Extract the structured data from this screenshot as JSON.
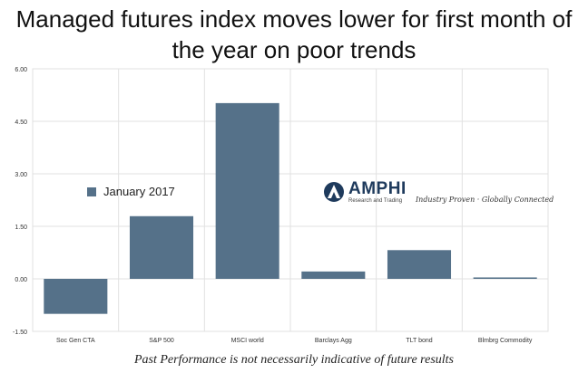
{
  "title": "Managed futures index moves lower for first month of the year on poor trends",
  "footer": "Past Performance is not necessarily indicative of future results",
  "logo": {
    "name": "AMPHI",
    "subtitle": "Research and Trading",
    "tagline": "Industry Proven · Globally Connected"
  },
  "colors": {
    "bar": "#557189",
    "grid": "#e1e1e1",
    "axis": "#999999"
  },
  "chart_data": {
    "type": "bar",
    "categories": [
      "Soc Gen CTA",
      "S&P 500",
      "MSCI world",
      "Barclays Agg",
      "TLT bond",
      "Blmbrg Commodity"
    ],
    "series": [
      {
        "name": "January 2017",
        "values": [
          -1.0,
          1.79,
          5.02,
          0.21,
          0.82,
          0.04
        ]
      }
    ],
    "ylim": [
      -1.5,
      6.0
    ],
    "yticks": [
      "-1.50",
      "0.00",
      "1.50",
      "3.00",
      "4.50",
      "6.00"
    ],
    "title": "",
    "xlabel": "",
    "ylabel": "",
    "grid": true,
    "legend": "left-center"
  }
}
